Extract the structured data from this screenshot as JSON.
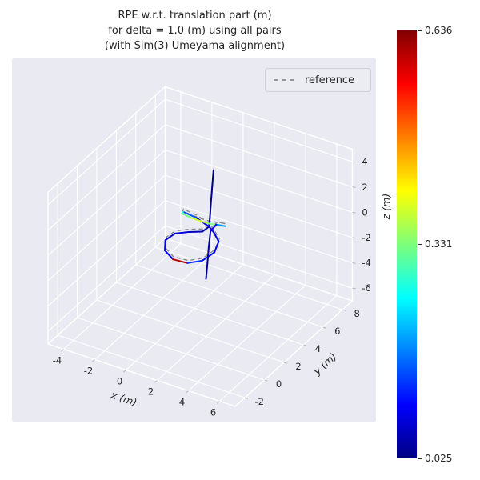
{
  "title": {
    "lines": [
      "RPE w.r.t. translation part (m)",
      "for delta = 1.0 (m) using all pairs",
      "(with Sim(3) Umeyama alignment)"
    ]
  },
  "legend": {
    "label": "reference",
    "line_style": "dashed",
    "line_color": "#777777"
  },
  "axes": {
    "x": {
      "label": "x (m)",
      "ticks": [
        -4,
        -2,
        0,
        2,
        4,
        6
      ]
    },
    "y": {
      "label": "y (m)",
      "ticks": [
        -2,
        0,
        2,
        4,
        6,
        8
      ]
    },
    "z": {
      "label": "z (m)",
      "ticks": [
        4,
        2,
        0,
        -2,
        -4,
        -6
      ]
    }
  },
  "colorbar": {
    "colormap": "jet",
    "min": 0.025,
    "mid": 0.331,
    "max": 0.636,
    "min_label": "0.025",
    "mid_label": "0.331",
    "max_label": "0.636"
  },
  "style": {
    "plot_bg": "#eaeaf2",
    "grid_color": "#ffffff",
    "text_color": "#262626"
  },
  "chart_data": {
    "type": "line",
    "projection": "3d",
    "title": "RPE w.r.t. translation part (m) for delta = 1.0 (m) using all pairs (with Sim(3) Umeyama alignment)",
    "xlabel": "x (m)",
    "ylabel": "y (m)",
    "zlabel": "z (m)",
    "xlim": [
      -5,
      7
    ],
    "ylim": [
      -3,
      9
    ],
    "zlim": [
      -7,
      5
    ],
    "grid": true,
    "legend_position": "upper right",
    "color_by": "RPE w.r.t. translation part (m)",
    "colormap": "jet",
    "cmin": 0.025,
    "cmax": 0.636,
    "series": [
      {
        "name": "estimate",
        "style": "solid-colormapped",
        "points_xyzv": [
          [
            1.6,
            3.4,
            5.0,
            0.03
          ],
          [
            1.55,
            3.35,
            3.7,
            0.032
          ],
          [
            1.5,
            3.3,
            2.4,
            0.036
          ],
          [
            1.45,
            3.28,
            1.3,
            0.04
          ],
          [
            1.4,
            3.25,
            0.55,
            0.048
          ],
          [
            1.05,
            3.15,
            0.1,
            0.06
          ],
          [
            0.3,
            2.95,
            -0.1,
            0.08
          ],
          [
            -0.4,
            2.65,
            -0.3,
            0.07
          ],
          [
            -0.7,
            2.15,
            -0.6,
            0.09
          ],
          [
            -0.45,
            1.7,
            -1.0,
            0.1
          ],
          [
            0.2,
            1.5,
            -1.3,
            0.6
          ],
          [
            1.0,
            1.7,
            -1.4,
            0.13
          ],
          [
            1.7,
            2.1,
            -1.2,
            0.11
          ],
          [
            2.1,
            2.7,
            -0.8,
            0.095
          ],
          [
            2.0,
            3.3,
            -0.4,
            0.08
          ],
          [
            1.5,
            3.6,
            -0.1,
            0.07
          ],
          [
            1.2,
            3.62,
            0.2,
            0.085
          ],
          [
            0.5,
            3.4,
            0.8,
            0.15
          ],
          [
            -0.1,
            3.0,
            1.3,
            0.28
          ],
          [
            0.2,
            2.4,
            1.7,
            0.33
          ],
          [
            1.0,
            2.1,
            1.9,
            0.38
          ],
          [
            1.9,
            2.3,
            1.7,
            0.33
          ],
          [
            2.4,
            2.9,
            1.3,
            0.275
          ],
          [
            2.3,
            3.5,
            0.8,
            0.19
          ],
          [
            1.6,
            3.7,
            0.5,
            0.1
          ],
          [
            1.35,
            3.5,
            0.0,
            0.05
          ],
          [
            1.3,
            3.4,
            -1.2,
            0.042
          ],
          [
            1.28,
            3.3,
            -2.4,
            0.036
          ],
          [
            1.25,
            3.2,
            -3.6,
            0.03
          ]
        ]
      },
      {
        "name": "reference",
        "style": "dashed",
        "color": "#888888",
        "points_xyz": [
          [
            1.62,
            3.42,
            5.2
          ],
          [
            1.57,
            3.37,
            3.9
          ],
          [
            1.52,
            3.32,
            2.6
          ],
          [
            1.47,
            3.3,
            1.5
          ],
          [
            1.42,
            3.27,
            0.75
          ],
          [
            1.07,
            3.17,
            0.3
          ],
          [
            0.32,
            2.97,
            0.1
          ],
          [
            -0.38,
            2.67,
            -0.1
          ],
          [
            -0.68,
            2.17,
            -0.4
          ],
          [
            -0.43,
            1.72,
            -0.8
          ],
          [
            0.22,
            1.52,
            -1.1
          ],
          [
            1.02,
            1.72,
            -1.2
          ],
          [
            1.72,
            2.12,
            -1.0
          ],
          [
            2.12,
            2.72,
            -0.6
          ],
          [
            2.02,
            3.32,
            -0.2
          ],
          [
            1.52,
            3.62,
            0.1
          ],
          [
            1.22,
            3.64,
            0.4
          ],
          [
            0.52,
            3.42,
            1.0
          ],
          [
            -0.08,
            3.02,
            1.5
          ],
          [
            0.22,
            2.42,
            1.9
          ],
          [
            1.02,
            2.12,
            2.1
          ],
          [
            1.92,
            2.32,
            1.9
          ],
          [
            2.42,
            2.92,
            1.5
          ],
          [
            2.32,
            3.52,
            1.0
          ],
          [
            1.62,
            3.72,
            0.7
          ],
          [
            1.37,
            3.52,
            0.2
          ],
          [
            1.32,
            3.42,
            -1.0
          ],
          [
            1.3,
            3.32,
            -2.2
          ],
          [
            1.27,
            3.22,
            -3.4
          ]
        ]
      }
    ]
  }
}
